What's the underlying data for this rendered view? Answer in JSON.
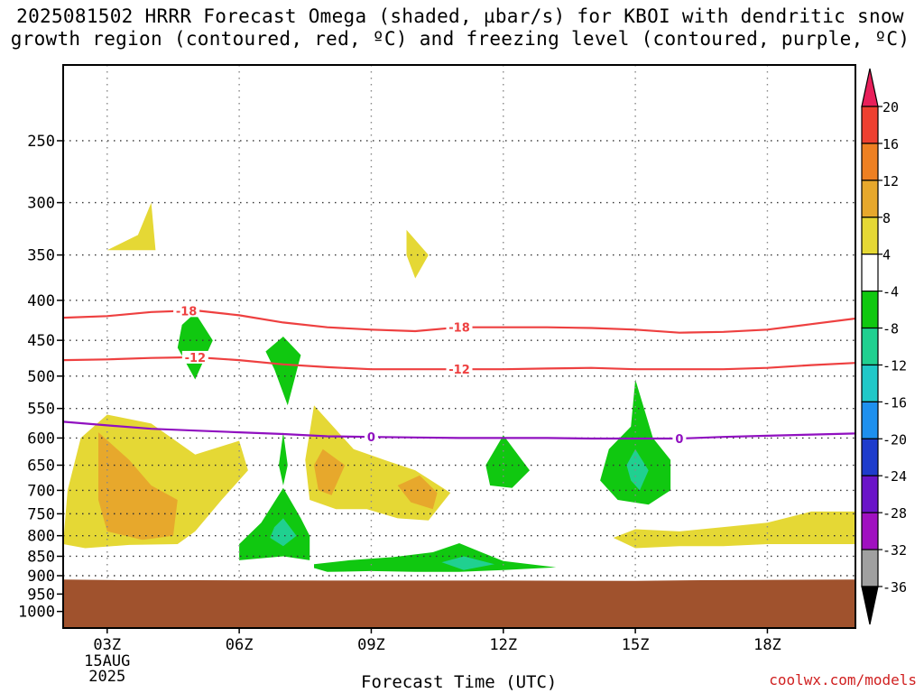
{
  "header": {
    "title_line1": "2025081502 HRRR Forecast Omega (shaded, µbar/s) for KBOI with dendritic snow",
    "title_line2": "growth region (contoured, red, ºC) and freezing level (contoured, purple, ºC)"
  },
  "footer": {
    "xaxis_title": "Forecast Time (UTC)",
    "credit": "coolwx.com/models"
  },
  "chart_data": {
    "type": "heatmap",
    "x_tick_labels": [
      "03Z",
      "06Z",
      "09Z",
      "12Z",
      "15Z",
      "18Z"
    ],
    "x_tick_hours": [
      3,
      6,
      9,
      12,
      15,
      18
    ],
    "x_sublabels": [
      "15AUG",
      "2025"
    ],
    "xlim_hours": [
      2,
      20
    ],
    "y_tick_labels": [
      "250",
      "300",
      "350",
      "400",
      "450",
      "500",
      "550",
      "600",
      "650",
      "700",
      "750",
      "800",
      "850",
      "900",
      "950",
      "1000"
    ],
    "y_tick_values": [
      250,
      300,
      350,
      400,
      450,
      500,
      550,
      600,
      650,
      700,
      750,
      800,
      850,
      900,
      950,
      1000
    ],
    "ylim_hpa": [
      200,
      1050
    ],
    "y_scale": "log-pressure",
    "grid": "dotted",
    "colorbar": {
      "labels": [
        "20",
        "16",
        "12",
        "8",
        "4",
        "-4",
        "-8",
        "-12",
        "-16",
        "-20",
        "-24",
        "-28",
        "-32",
        "-36"
      ],
      "colors": [
        "#e81f5a",
        "#ee4030",
        "#ee8022",
        "#e7a82c",
        "#e5d835",
        "#ffffff",
        "#10c810",
        "#20d090",
        "#20c8c8",
        "#1e90ee",
        "#1e3ccc",
        "#6a14c8",
        "#a010c0",
        "#a0a0a0",
        "#000000"
      ]
    },
    "terrain_color": "#a0522d",
    "contours": [
      {
        "label": "-18",
        "color": "#ee4040",
        "points": [
          [
            2.0,
            421
          ],
          [
            3.0,
            419
          ],
          [
            4.0,
            414
          ],
          [
            5.0,
            412
          ],
          [
            6.0,
            418
          ],
          [
            7.0,
            427
          ],
          [
            8.0,
            433
          ],
          [
            9.0,
            436
          ],
          [
            10.0,
            438
          ],
          [
            11.0,
            433
          ],
          [
            12.0,
            433
          ],
          [
            13.0,
            433
          ],
          [
            14.0,
            434
          ],
          [
            15.0,
            436
          ],
          [
            16.0,
            440
          ],
          [
            17.0,
            439
          ],
          [
            18.0,
            436
          ],
          [
            19.0,
            429
          ],
          [
            20.0,
            422
          ]
        ],
        "label_positions": [
          11.0,
          4.8
        ]
      },
      {
        "label": "-12",
        "color": "#ee4040",
        "points": [
          [
            2.0,
            477
          ],
          [
            3.0,
            476
          ],
          [
            4.0,
            474
          ],
          [
            5.0,
            473
          ],
          [
            6.0,
            477
          ],
          [
            7.0,
            483
          ],
          [
            8.0,
            487
          ],
          [
            9.0,
            490
          ],
          [
            10.0,
            490
          ],
          [
            11.0,
            490
          ],
          [
            12.0,
            490
          ],
          [
            13.0,
            489
          ],
          [
            14.0,
            488
          ],
          [
            15.0,
            490
          ],
          [
            16.0,
            490
          ],
          [
            17.0,
            490
          ],
          [
            18.0,
            488
          ],
          [
            19.0,
            484
          ],
          [
            20.0,
            481
          ]
        ],
        "label_positions": [
          11.0,
          5.0
        ]
      },
      {
        "label": "0",
        "color": "#9010c0",
        "points": [
          [
            2.0,
            572
          ],
          [
            3.0,
            578
          ],
          [
            4.0,
            584
          ],
          [
            5.0,
            587
          ],
          [
            6.0,
            590
          ],
          [
            7.0,
            593
          ],
          [
            8.0,
            597
          ],
          [
            9.0,
            598
          ],
          [
            10.0,
            599
          ],
          [
            11.0,
            600
          ],
          [
            12.0,
            600
          ],
          [
            13.0,
            600
          ],
          [
            14.0,
            601
          ],
          [
            15.0,
            601
          ],
          [
            16.0,
            601
          ],
          [
            17.0,
            598
          ],
          [
            18.0,
            596
          ],
          [
            19.0,
            594
          ],
          [
            20.0,
            592
          ]
        ],
        "label_positions": [
          9.0,
          16.0
        ]
      }
    ],
    "omega_regions": [
      {
        "value_range": "4 to 8",
        "color": "#e5d835",
        "points": [
          [
            3.0,
            560
          ],
          [
            4.0,
            575
          ],
          [
            5.0,
            630
          ],
          [
            6.0,
            605
          ],
          [
            6.2,
            660
          ],
          [
            5.6,
            720
          ],
          [
            5.0,
            790
          ],
          [
            4.6,
            820
          ],
          [
            3.5,
            822
          ],
          [
            2.5,
            830
          ],
          [
            2.0,
            820
          ],
          [
            2.1,
            700
          ],
          [
            2.4,
            600
          ]
        ]
      },
      {
        "value_range": "8 to 12",
        "color": "#e7a82c",
        "points": [
          [
            2.8,
            590
          ],
          [
            3.5,
            640
          ],
          [
            4.0,
            690
          ],
          [
            4.6,
            720
          ],
          [
            4.5,
            800
          ],
          [
            3.8,
            810
          ],
          [
            3.0,
            790
          ],
          [
            2.8,
            720
          ]
        ]
      },
      {
        "value_range": "4 to 8",
        "color": "#e5d835",
        "points": [
          [
            7.7,
            545
          ],
          [
            8.6,
            620
          ],
          [
            9.3,
            640
          ],
          [
            10.0,
            660
          ],
          [
            10.8,
            705
          ],
          [
            10.3,
            765
          ],
          [
            9.6,
            760
          ],
          [
            8.9,
            740
          ],
          [
            8.2,
            740
          ],
          [
            7.6,
            720
          ],
          [
            7.5,
            640
          ]
        ]
      },
      {
        "value_range": "8 to 12",
        "color": "#e7a82c",
        "points": [
          [
            7.9,
            620
          ],
          [
            8.4,
            650
          ],
          [
            8.1,
            710
          ],
          [
            7.8,
            700
          ],
          [
            7.7,
            650
          ]
        ]
      },
      {
        "value_range": "8 to 12",
        "color": "#e7a82c",
        "points": [
          [
            10.1,
            670
          ],
          [
            10.5,
            705
          ],
          [
            10.4,
            740
          ],
          [
            9.9,
            725
          ],
          [
            9.6,
            690
          ]
        ]
      },
      {
        "value_range": "4 to 8",
        "color": "#e5d835",
        "points": [
          [
            3.0,
            345
          ],
          [
            3.7,
            330
          ],
          [
            4.0,
            300
          ],
          [
            4.1,
            345
          ]
        ]
      },
      {
        "value_range": "4 to 8",
        "color": "#e5d835",
        "points": [
          [
            9.8,
            325
          ],
          [
            10.3,
            350
          ],
          [
            10.0,
            375
          ],
          [
            9.8,
            350
          ]
        ]
      },
      {
        "value_range": "4 to 8",
        "color": "#e5d835",
        "points": [
          [
            14.5,
            805
          ],
          [
            15.0,
            785
          ],
          [
            16.0,
            790
          ],
          [
            17.0,
            780
          ],
          [
            18.0,
            770
          ],
          [
            19.0,
            745
          ],
          [
            20.0,
            745
          ],
          [
            20.0,
            820
          ],
          [
            19.0,
            820
          ],
          [
            18.0,
            820
          ],
          [
            17.0,
            825
          ],
          [
            16.0,
            825
          ],
          [
            15.0,
            830
          ]
        ]
      },
      {
        "value_range": "-4 to -8",
        "color": "#10c810",
        "points": [
          [
            5.0,
            415
          ],
          [
            5.4,
            450
          ],
          [
            5.0,
            505
          ],
          [
            4.6,
            460
          ],
          [
            4.7,
            430
          ]
        ]
      },
      {
        "value_range": "-4 to -8",
        "color": "#10c810",
        "points": [
          [
            6.6,
            465
          ],
          [
            7.0,
            445
          ],
          [
            7.4,
            470
          ],
          [
            7.1,
            545
          ],
          [
            6.8,
            490
          ]
        ]
      },
      {
        "value_range": "-4 to -8",
        "color": "#10c810",
        "points": [
          [
            7.0,
            590
          ],
          [
            7.1,
            650
          ],
          [
            7.0,
            690
          ],
          [
            6.9,
            650
          ]
        ]
      },
      {
        "value_range": "-4 to -8",
        "color": "#10c810",
        "points": [
          [
            7.0,
            695
          ],
          [
            7.4,
            760
          ],
          [
            7.6,
            800
          ],
          [
            7.6,
            860
          ],
          [
            7.0,
            850
          ],
          [
            6.0,
            860
          ],
          [
            6.0,
            820
          ],
          [
            6.5,
            770
          ]
        ]
      },
      {
        "value_range": "-8 to -12",
        "color": "#20d090",
        "points": [
          [
            7.0,
            760
          ],
          [
            7.3,
            800
          ],
          [
            7.0,
            825
          ],
          [
            6.7,
            805
          ],
          [
            6.8,
            780
          ]
        ]
      },
      {
        "value_range": "-4 to -8",
        "color": "#10c810",
        "points": [
          [
            7.7,
            870
          ],
          [
            8.5,
            860
          ],
          [
            9.5,
            852
          ],
          [
            10.4,
            840
          ],
          [
            11.0,
            818
          ],
          [
            11.5,
            840
          ],
          [
            12.0,
            862
          ],
          [
            13.2,
            878
          ],
          [
            12.0,
            885
          ],
          [
            11.0,
            890
          ],
          [
            10.0,
            890
          ],
          [
            9.0,
            888
          ],
          [
            8.0,
            890
          ],
          [
            7.7,
            880
          ]
        ]
      },
      {
        "value_range": "-8 to -12",
        "color": "#20d090",
        "points": [
          [
            10.6,
            865
          ],
          [
            11.1,
            850
          ],
          [
            11.8,
            870
          ],
          [
            11.1,
            885
          ]
        ]
      },
      {
        "value_range": "-4 to -8",
        "color": "#10c810",
        "points": [
          [
            12.0,
            595
          ],
          [
            12.6,
            660
          ],
          [
            12.2,
            695
          ],
          [
            11.7,
            690
          ],
          [
            11.6,
            650
          ]
        ]
      },
      {
        "value_range": "-4 to -8",
        "color": "#10c810",
        "points": [
          [
            15.0,
            505
          ],
          [
            15.4,
            600
          ],
          [
            15.8,
            640
          ],
          [
            15.8,
            700
          ],
          [
            15.3,
            730
          ],
          [
            14.6,
            720
          ],
          [
            14.2,
            680
          ],
          [
            14.4,
            620
          ],
          [
            14.9,
            580
          ]
        ]
      },
      {
        "value_range": "-8 to -12",
        "color": "#20d090",
        "points": [
          [
            15.0,
            620
          ],
          [
            15.3,
            660
          ],
          [
            15.1,
            700
          ],
          [
            14.9,
            680
          ],
          [
            14.8,
            650
          ]
        ]
      }
    ],
    "xlabel": "Forecast Time (UTC)",
    "ylabel": ""
  }
}
